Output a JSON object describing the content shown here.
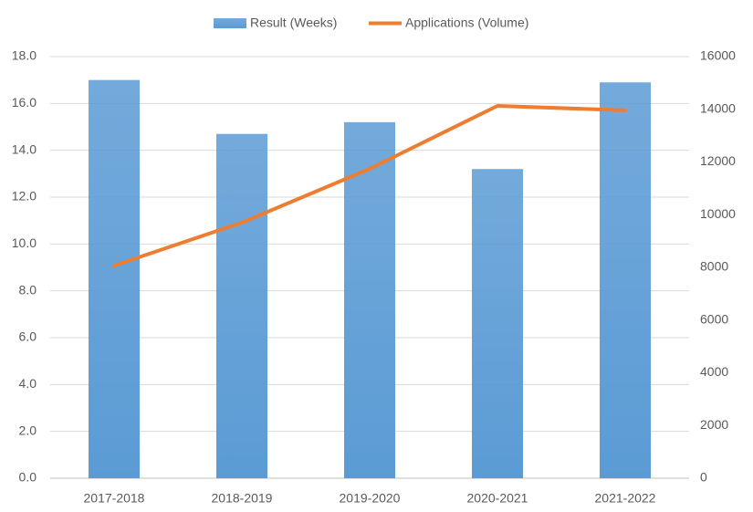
{
  "chart_data": {
    "type": "combo",
    "categories": [
      "2017-2018",
      "2018-2019",
      "2019-2020",
      "2020-2021",
      "2021-2022"
    ],
    "series": [
      {
        "name": "Result (Weeks)",
        "type": "bar",
        "color": "#5b9bd5",
        "values": [
          17.0,
          14.7,
          15.2,
          13.2,
          16.9
        ]
      },
      {
        "name": "Applications (Volume)",
        "type": "line",
        "color": "#ed7d31",
        "axis": "y2",
        "values": [
          8070,
          9700,
          11740,
          14130,
          13960
        ]
      }
    ],
    "ylim": [
      0,
      18
    ],
    "yticks": [
      {
        "value": 0,
        "label": "0.0"
      },
      {
        "value": 2,
        "label": "2.0"
      },
      {
        "value": 4,
        "label": "4.0"
      },
      {
        "value": 6,
        "label": "6.0"
      },
      {
        "value": 8,
        "label": "8.0"
      },
      {
        "value": 10,
        "label": "10.0"
      },
      {
        "value": 12,
        "label": "12.0"
      },
      {
        "value": 14,
        "label": "14.0"
      },
      {
        "value": 16,
        "label": "16.0"
      },
      {
        "value": 18,
        "label": "18.0"
      }
    ],
    "y2lim": [
      0,
      16000
    ],
    "y2ticks": [
      0,
      2000,
      4000,
      6000,
      8000,
      10000,
      12000,
      14000,
      16000
    ],
    "grid": true,
    "legend": "top"
  }
}
